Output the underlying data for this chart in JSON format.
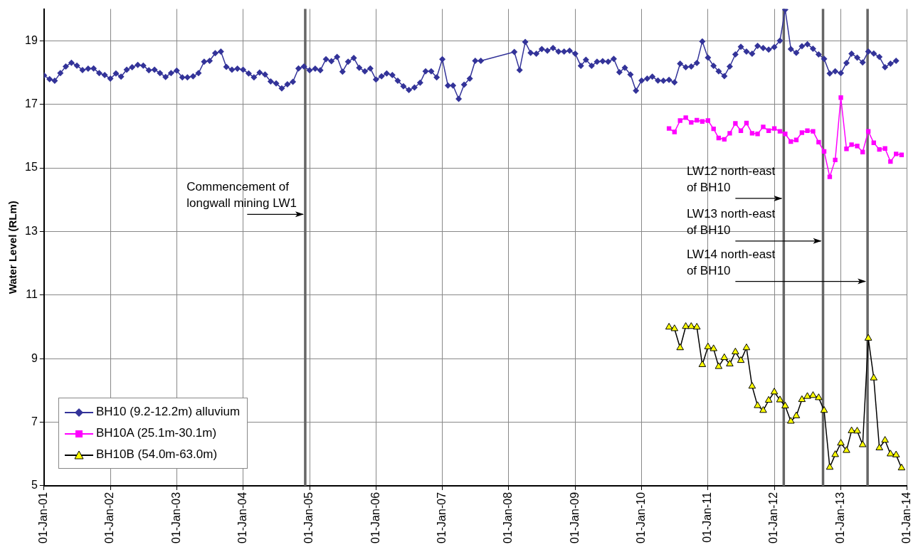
{
  "chart_data": {
    "type": "line",
    "ylabel": "Water Level (RLm)",
    "xlim": [
      "2001-01-01",
      "2014-01-01"
    ],
    "xticks": [
      {
        "value": "2001-01-01",
        "label": "01-Jan-01"
      },
      {
        "value": "2002-01-01",
        "label": "01-Jan-02"
      },
      {
        "value": "2003-01-01",
        "label": "01-Jan-03"
      },
      {
        "value": "2004-01-01",
        "label": "01-Jan-04"
      },
      {
        "value": "2005-01-01",
        "label": "01-Jan-05"
      },
      {
        "value": "2006-01-01",
        "label": "01-Jan-06"
      },
      {
        "value": "2007-01-01",
        "label": "01-Jan-07"
      },
      {
        "value": "2008-01-01",
        "label": "01-Jan-08"
      },
      {
        "value": "2009-01-01",
        "label": "01-Jan-09"
      },
      {
        "value": "2010-01-01",
        "label": "01-Jan-10"
      },
      {
        "value": "2011-01-01",
        "label": "01-Jan-11"
      },
      {
        "value": "2012-01-01",
        "label": "01-Jan-12"
      },
      {
        "value": "2013-01-01",
        "label": "01-Jan-13"
      },
      {
        "value": "2014-01-01",
        "label": "01-Jan-14"
      }
    ],
    "ylim": [
      5,
      20
    ],
    "yticks": [
      5,
      7,
      9,
      11,
      13,
      15,
      17,
      19
    ],
    "grid": true,
    "legend": "bottom left",
    "series": [
      {
        "name": "BH10 (9.2-12.2m) alluvium",
        "color": "#333399",
        "marker": "diamond",
        "x": [
          "2001-01",
          "2001-02",
          "2001-03",
          "2001-04",
          "2001-05",
          "2001-06",
          "2001-07",
          "2001-08",
          "2001-09",
          "2001-10",
          "2001-11",
          "2001-12",
          "2002-01",
          "2002-02",
          "2002-03",
          "2002-04",
          "2002-05",
          "2002-06",
          "2002-07",
          "2002-08",
          "2002-09",
          "2002-10",
          "2002-11",
          "2002-12",
          "2003-01",
          "2003-02",
          "2003-03",
          "2003-04",
          "2003-05",
          "2003-06",
          "2003-07",
          "2003-08",
          "2003-09",
          "2003-10",
          "2003-11",
          "2003-12",
          "2004-01",
          "2004-02",
          "2004-03",
          "2004-04",
          "2004-05",
          "2004-06",
          "2004-07",
          "2004-08",
          "2004-09",
          "2004-10",
          "2004-11",
          "2004-12",
          "2005-01",
          "2005-02",
          "2005-03",
          "2005-04",
          "2005-05",
          "2005-06",
          "2005-07",
          "2005-08",
          "2005-09",
          "2005-10",
          "2005-11",
          "2005-12",
          "2006-01",
          "2006-02",
          "2006-03",
          "2006-04",
          "2006-05",
          "2006-06",
          "2006-07",
          "2006-08",
          "2006-09",
          "2006-10",
          "2006-11",
          "2006-12",
          "2007-01",
          "2007-02",
          "2007-03",
          "2007-04",
          "2007-05",
          "2007-06",
          "2007-07",
          "2007-08",
          "2008-02",
          "2008-03",
          "2008-04",
          "2008-05",
          "2008-06",
          "2008-07",
          "2008-08",
          "2008-09",
          "2008-10",
          "2008-11",
          "2008-12",
          "2009-01",
          "2009-02",
          "2009-03",
          "2009-04",
          "2009-05",
          "2009-06",
          "2009-07",
          "2009-08",
          "2009-09",
          "2009-10",
          "2009-11",
          "2009-12",
          "2010-01",
          "2010-02",
          "2010-03",
          "2010-04",
          "2010-05",
          "2010-06",
          "2010-07",
          "2010-08",
          "2010-09",
          "2010-10",
          "2010-11",
          "2010-12",
          "2011-01",
          "2011-02",
          "2011-03",
          "2011-04",
          "2011-05",
          "2011-06",
          "2011-07",
          "2011-08",
          "2011-09",
          "2011-10",
          "2011-11",
          "2011-12",
          "2012-01",
          "2012-02",
          "2012-03",
          "2012-04",
          "2012-05",
          "2012-06",
          "2012-07",
          "2012-08",
          "2012-09",
          "2012-10",
          "2012-11",
          "2012-12",
          "2013-01",
          "2013-02",
          "2013-03",
          "2013-04",
          "2013-05",
          "2013-06",
          "2013-07",
          "2013-08",
          "2013-09",
          "2013-10",
          "2013-11"
        ],
        "values": [
          17.91,
          17.79,
          17.74,
          17.98,
          18.19,
          18.31,
          18.22,
          18.08,
          18.12,
          18.13,
          17.98,
          17.92,
          17.81,
          17.97,
          17.87,
          18.09,
          18.17,
          18.24,
          18.22,
          18.07,
          18.09,
          17.98,
          17.86,
          17.98,
          18.06,
          17.85,
          17.85,
          17.88,
          17.98,
          18.34,
          18.37,
          18.61,
          18.66,
          18.18,
          18.09,
          18.12,
          18.09,
          17.97,
          17.85,
          18.0,
          17.94,
          17.72,
          17.66,
          17.5,
          17.63,
          17.71,
          18.13,
          18.19,
          18.07,
          18.12,
          18.07,
          18.42,
          18.36,
          18.49,
          18.03,
          18.34,
          18.46,
          18.15,
          18.04,
          18.13,
          17.78,
          17.88,
          17.97,
          17.92,
          17.74,
          17.57,
          17.45,
          17.53,
          17.68,
          18.04,
          18.04,
          17.85,
          18.42,
          17.59,
          17.59,
          17.17,
          17.62,
          17.81,
          18.37,
          18.37,
          18.65,
          18.08,
          18.96,
          18.62,
          18.59,
          18.74,
          18.69,
          18.77,
          18.66,
          18.66,
          18.69,
          18.59,
          18.21,
          18.4,
          18.21,
          18.34,
          18.36,
          18.34,
          18.43,
          18.01,
          18.15,
          17.94,
          17.43,
          17.75,
          17.81,
          17.87,
          17.75,
          17.74,
          17.77,
          17.69,
          18.28,
          18.17,
          18.19,
          18.3,
          18.98,
          18.47,
          18.21,
          18.04,
          17.89,
          18.19,
          18.57,
          18.81,
          18.66,
          18.59,
          18.84,
          18.77,
          18.72,
          18.8,
          19.0,
          19.98,
          18.74,
          18.62,
          18.83,
          18.89,
          18.75,
          18.57,
          18.43,
          17.97,
          18.04,
          17.98,
          18.3,
          18.59,
          18.47,
          18.32,
          18.66,
          18.6,
          18.49,
          18.17,
          18.28,
          18.37
        ]
      },
      {
        "name": "BH10A (25.1m-30.1m)",
        "color": "#ff00ff",
        "marker": "square",
        "x": [
          "2010-06",
          "2010-07",
          "2010-08",
          "2010-09",
          "2010-10",
          "2010-11",
          "2010-12",
          "2011-01",
          "2011-02",
          "2011-03",
          "2011-04",
          "2011-05",
          "2011-06",
          "2011-07",
          "2011-08",
          "2011-09",
          "2011-10",
          "2011-11",
          "2011-12",
          "2012-01",
          "2012-02",
          "2012-03",
          "2012-04",
          "2012-05",
          "2012-06",
          "2012-07",
          "2012-08",
          "2012-09",
          "2012-10",
          "2012-11",
          "2012-12",
          "2013-01",
          "2013-02",
          "2013-03",
          "2013-04",
          "2013-05",
          "2013-06",
          "2013-07",
          "2013-08",
          "2013-09",
          "2013-10",
          "2013-11",
          "2013-12"
        ],
        "values": [
          16.24,
          16.13,
          16.49,
          16.58,
          16.43,
          16.5,
          16.46,
          16.49,
          16.23,
          15.94,
          15.9,
          16.09,
          16.4,
          16.17,
          16.41,
          16.09,
          16.07,
          16.29,
          16.17,
          16.24,
          16.15,
          16.07,
          15.83,
          15.88,
          16.11,
          16.17,
          16.15,
          15.81,
          15.52,
          14.72,
          15.25,
          17.21,
          15.6,
          15.73,
          15.69,
          15.5,
          16.15,
          15.79,
          15.58,
          15.61,
          15.2,
          15.44,
          15.41
        ]
      },
      {
        "name": "BH10B (54.0m-63.0m)",
        "color": "#ffff00",
        "marker": "triangle",
        "x": [
          "2010-06",
          "2010-07",
          "2010-08",
          "2010-09",
          "2010-10",
          "2010-11",
          "2010-12",
          "2011-01",
          "2011-02",
          "2011-03",
          "2011-04",
          "2011-05",
          "2011-06",
          "2011-07",
          "2011-08",
          "2011-09",
          "2011-10",
          "2011-11",
          "2011-12",
          "2012-01",
          "2012-02",
          "2012-03",
          "2012-04",
          "2012-05",
          "2012-06",
          "2012-07",
          "2012-08",
          "2012-09",
          "2012-10",
          "2012-11",
          "2012-12",
          "2013-01",
          "2013-02",
          "2013-03",
          "2013-04",
          "2013-05",
          "2013-06",
          "2013-07",
          "2013-08",
          "2013-09",
          "2013-10",
          "2013-11",
          "2013-12"
        ],
        "values": [
          9.99,
          9.94,
          9.34,
          10.01,
          10.01,
          9.99,
          8.81,
          9.37,
          9.31,
          8.75,
          9.03,
          8.83,
          9.21,
          8.94,
          9.34,
          8.13,
          7.52,
          7.37,
          7.69,
          7.95,
          7.7,
          7.51,
          7.03,
          7.2,
          7.71,
          7.81,
          7.84,
          7.77,
          7.37,
          5.58,
          5.98,
          6.34,
          6.11,
          6.73,
          6.72,
          6.29,
          9.64,
          8.39,
          6.19,
          6.43,
          6.0,
          5.97,
          5.56
        ]
      }
    ],
    "ref_lines": [
      {
        "axis": "x",
        "value": "2004-12-08",
        "color": "#666666"
      },
      {
        "axis": "x",
        "value": "2012-02-22",
        "color": "#666666"
      },
      {
        "axis": "x",
        "value": "2012-09-25",
        "color": "#666666"
      },
      {
        "axis": "x",
        "value": "2013-05-28",
        "color": "#666666"
      }
    ],
    "annotations": [
      {
        "text": "Commencement of\nlongwall mining LW1",
        "x": "2004-12-08",
        "y": 13.54
      },
      {
        "text": "LW12 north-east\nof BH10",
        "x": "2012-02-22",
        "y": 14.04
      },
      {
        "text": "LW13 north-east\nof BH10",
        "x": "2012-09-25",
        "y": 12.7
      },
      {
        "text": "LW14 north-east\nof BH10",
        "x": "2013-05-28",
        "y": 11.43
      }
    ]
  }
}
